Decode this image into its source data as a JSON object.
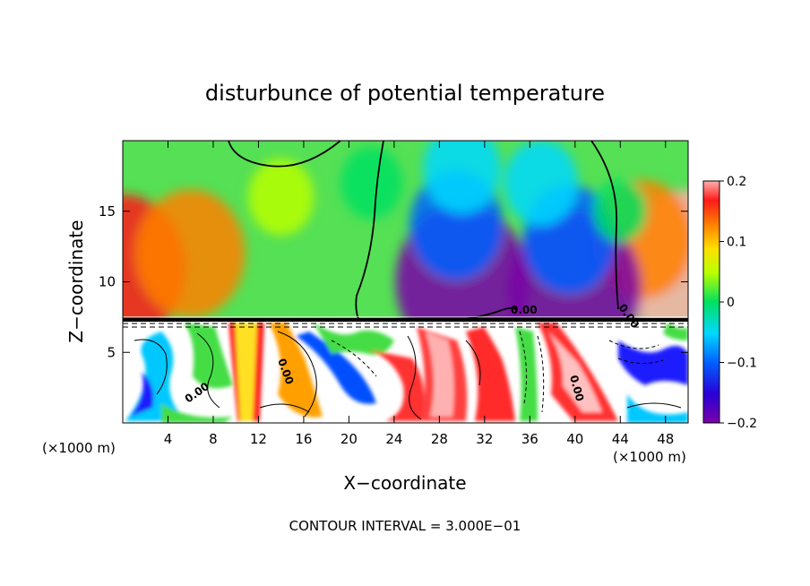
{
  "chart_data": {
    "type": "heatmap",
    "title": "disturbunce of potential temperature",
    "xlabel": "X−coordinate",
    "ylabel": "Z−coordinate",
    "x_unit_left": "(×1000 m)",
    "x_unit_right": "(×1000 m)",
    "xlim": [
      0,
      50
    ],
    "ylim": [
      0,
      20
    ],
    "x_ticks": [
      4,
      8,
      12,
      16,
      20,
      24,
      28,
      32,
      36,
      40,
      44,
      48
    ],
    "y_ticks": [
      5,
      10,
      15
    ],
    "colorbar": {
      "range": [
        -0.2,
        0.2
      ],
      "tick_labels": [
        "0.2",
        "0.1",
        "0",
        "−0.1",
        "−0.2"
      ],
      "tick_values": [
        0.2,
        0.1,
        0,
        -0.1,
        -0.2
      ]
    },
    "footer": "CONTOUR INTERVAL = 3.000E−01",
    "contour_label": "0.00",
    "upper_field_features": [
      {
        "x": 0,
        "z": 11,
        "value": 0.18
      },
      {
        "x": 6,
        "z": 12,
        "value": 0.14
      },
      {
        "x": 50,
        "z": 11,
        "value": 0.2
      },
      {
        "x": 46,
        "z": 13,
        "value": 0.12
      },
      {
        "x": 14,
        "z": 16,
        "value": 0.03
      },
      {
        "x": 22,
        "z": 17,
        "value": 0.02
      },
      {
        "x": 30,
        "z": 10,
        "value": -0.2
      },
      {
        "x": 29.5,
        "z": 14,
        "value": -0.1
      },
      {
        "x": 30,
        "z": 18,
        "value": -0.06
      },
      {
        "x": 40,
        "z": 9.5,
        "value": -0.2
      },
      {
        "x": 39.5,
        "z": 13,
        "value": -0.1
      },
      {
        "x": 37,
        "z": 17,
        "value": -0.05
      },
      {
        "x": 44,
        "z": 15,
        "value": 0.0
      }
    ]
  }
}
